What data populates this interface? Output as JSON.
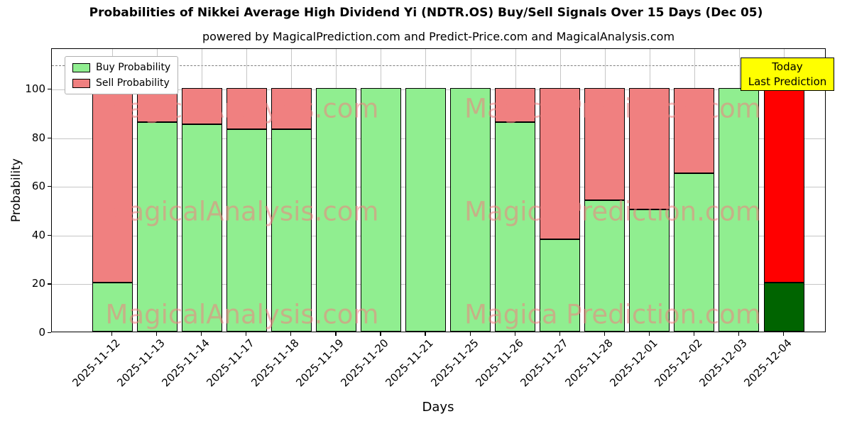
{
  "chart_data": {
    "type": "bar",
    "stacked": true,
    "title": "Probabilities of Nikkei Average High Dividend Yi (NDTR.OS) Buy/Sell Signals Over 15 Days (Dec 05)",
    "subtitle": "powered by MagicalPrediction.com and Predict-Price.com and MagicalAnalysis.com",
    "xlabel": "Days",
    "ylabel": "Probability",
    "ylim": [
      0,
      116.6
    ],
    "yticks": [
      0,
      20,
      40,
      60,
      80,
      100
    ],
    "grid": true,
    "legend_position": "upper left",
    "threshold_line": {
      "y": 110,
      "style": "dashed",
      "color": "#7f7f7f"
    },
    "categories": [
      "2025-11-12",
      "2025-11-13",
      "2025-11-14",
      "2025-11-17",
      "2025-11-18",
      "2025-11-19",
      "2025-11-20",
      "2025-11-21",
      "2025-11-25",
      "2025-11-26",
      "2025-11-27",
      "2025-11-28",
      "2025-12-01",
      "2025-12-02",
      "2025-12-03",
      "2025-12-04"
    ],
    "series": [
      {
        "name": "Buy Probability",
        "color": "#90ee90",
        "final_color": "#006400",
        "values": [
          20,
          86,
          85,
          83,
          83,
          100,
          100,
          100,
          100,
          86,
          38,
          54,
          50,
          65,
          100,
          20
        ]
      },
      {
        "name": "Sell Probability",
        "color": "#f08080",
        "final_color": "#ff0000",
        "values": [
          80,
          14,
          15,
          17,
          17,
          0,
          0,
          0,
          0,
          14,
          62,
          46,
          50,
          35,
          0,
          80
        ]
      }
    ],
    "annotation": {
      "line1": "Today",
      "line2": "Last Prediction",
      "bg": "#ffff00"
    },
    "watermark": {
      "left": "MagicalAnalysis.com",
      "right": "Magica Prediction.com",
      "color": "#f08080"
    }
  }
}
